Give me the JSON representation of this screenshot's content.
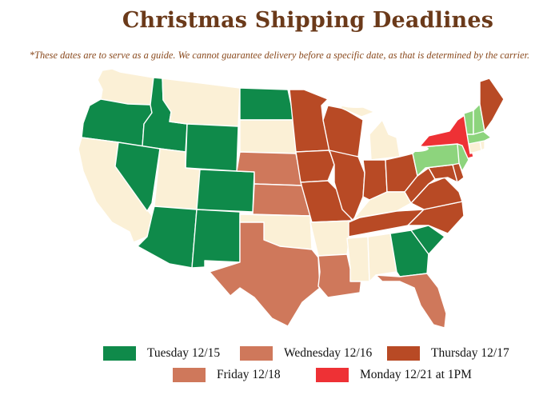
{
  "title": "Christmas Shipping Deadlines",
  "subtitle": "*These dates are to serve as a guide. We cannot guarantee delivery before a specific date, as that is determined by the carrier.",
  "colors": {
    "tuesday": "#0f8a4a",
    "wednesday": "#cf785b",
    "thursday": "#b84a25",
    "friday": "#cf785b",
    "monday": "#ee3135",
    "light_green": "#8dd47d",
    "default": "#fbf0d6"
  },
  "legend": [
    {
      "key": "tuesday",
      "label": "Tuesday 12/15"
    },
    {
      "key": "wednesday",
      "label": "Wednesday 12/16"
    },
    {
      "key": "thursday",
      "label": "Thursday 12/17"
    },
    {
      "key": "friday",
      "label": "Friday 12/18"
    },
    {
      "key": "monday",
      "label": "Monday 12/21 at 1PM"
    }
  ],
  "states": {
    "WA": "default",
    "OR": "tuesday",
    "CA": "default",
    "ID": "tuesday",
    "NV": "tuesday",
    "MT": "default",
    "WY": "tuesday",
    "UT": "default",
    "AZ": "tuesday",
    "CO": "tuesday",
    "NM": "tuesday",
    "ND": "tuesday",
    "SD": "default",
    "NE": "wednesday",
    "KS": "wednesday",
    "OK": "default",
    "TX": "friday",
    "MN": "thursday",
    "IA": "thursday",
    "MO": "thursday",
    "AR": "default",
    "LA": "friday",
    "WI": "thursday",
    "IL": "thursday",
    "MI": "default",
    "IN": "thursday",
    "OH": "thursday",
    "KY": "default",
    "TN": "thursday",
    "MS": "default",
    "AL": "default",
    "GA": "tuesday",
    "FL": "friday",
    "SC": "tuesday",
    "NC": "thursday",
    "VA": "thursday",
    "WV": "thursday",
    "MD": "thursday",
    "DE": "thursday",
    "PA": "light_green",
    "NY": "monday",
    "NJ": "light_green",
    "CT": "default",
    "RI": "default",
    "MA": "light_green",
    "VT": "light_green",
    "NH": "light_green",
    "ME": "thursday"
  }
}
